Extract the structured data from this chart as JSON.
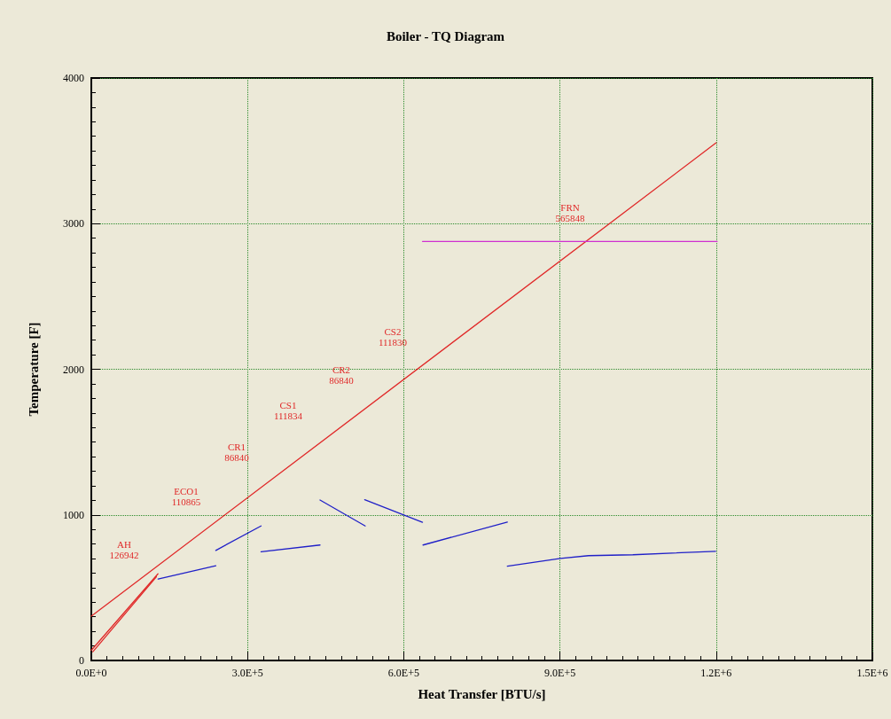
{
  "chart_data": {
    "type": "line",
    "title": "Boiler - TQ Diagram",
    "xlabel": "Heat Transfer [BTU/s]",
    "ylabel": "Temperature [F]",
    "xlim": [
      0,
      1500000
    ],
    "xticks": [
      {
        "value": 0,
        "label": "0.0E+0"
      },
      {
        "value": 300000,
        "label": "3.0E+5"
      },
      {
        "value": 600000,
        "label": "6.0E+5"
      },
      {
        "value": 900000,
        "label": "9.0E+5"
      },
      {
        "value": 1200000,
        "label": "1.2E+6"
      },
      {
        "value": 1500000,
        "label": "1.5E+6"
      }
    ],
    "ylim": [
      0,
      4000
    ],
    "yticks": [
      0,
      1000,
      2000,
      3000,
      4000
    ],
    "grid": true,
    "marker": "none",
    "line_style": "solid",
    "series": [
      {
        "color": "#e02828",
        "x": [
          0,
          1200000
        ],
        "values": [
          305,
          3555
        ]
      },
      {
        "color": "#e02828",
        "x": [
          0,
          128000
        ],
        "values": [
          70,
          595
        ]
      },
      {
        "color": "#e02828",
        "x": [
          3000,
          125000
        ],
        "values": [
          60,
          575
        ]
      },
      {
        "color": "#2020c8",
        "x": [
          128300,
          239100
        ],
        "values": [
          559,
          650
        ]
      },
      {
        "color": "#2020c8",
        "x": [
          239100,
          326000
        ],
        "values": [
          756,
          924
        ]
      },
      {
        "color": "#2020c8",
        "x": [
          326000,
          439200
        ],
        "values": [
          746,
          793
        ]
      },
      {
        "color": "#2020c8",
        "x": [
          439200,
          526000
        ],
        "values": [
          1102,
          924
        ]
      },
      {
        "color": "#2020c8",
        "x": [
          525000,
          636000
        ],
        "values": [
          1104,
          949
        ]
      },
      {
        "color": "#2020c8",
        "x": [
          637000,
          799000
        ],
        "values": [
          793,
          951
        ]
      },
      {
        "color": "#2020c8",
        "x": [
          799000,
          901000,
          955000,
          1040000,
          1199000
        ],
        "values": [
          648,
          701,
          720,
          726,
          750
        ]
      },
      {
        "color": "#d030d0",
        "x": [
          636000,
          1202000
        ],
        "values": [
          2878,
          2878
        ]
      }
    ],
    "annotations": [
      "AH\n126942",
      "ECO1\n110865",
      "CR1\n86840",
      "CS1\n111834",
      "CR2\n86840",
      "CS2\n111830",
      "FRN\n565848"
    ]
  }
}
